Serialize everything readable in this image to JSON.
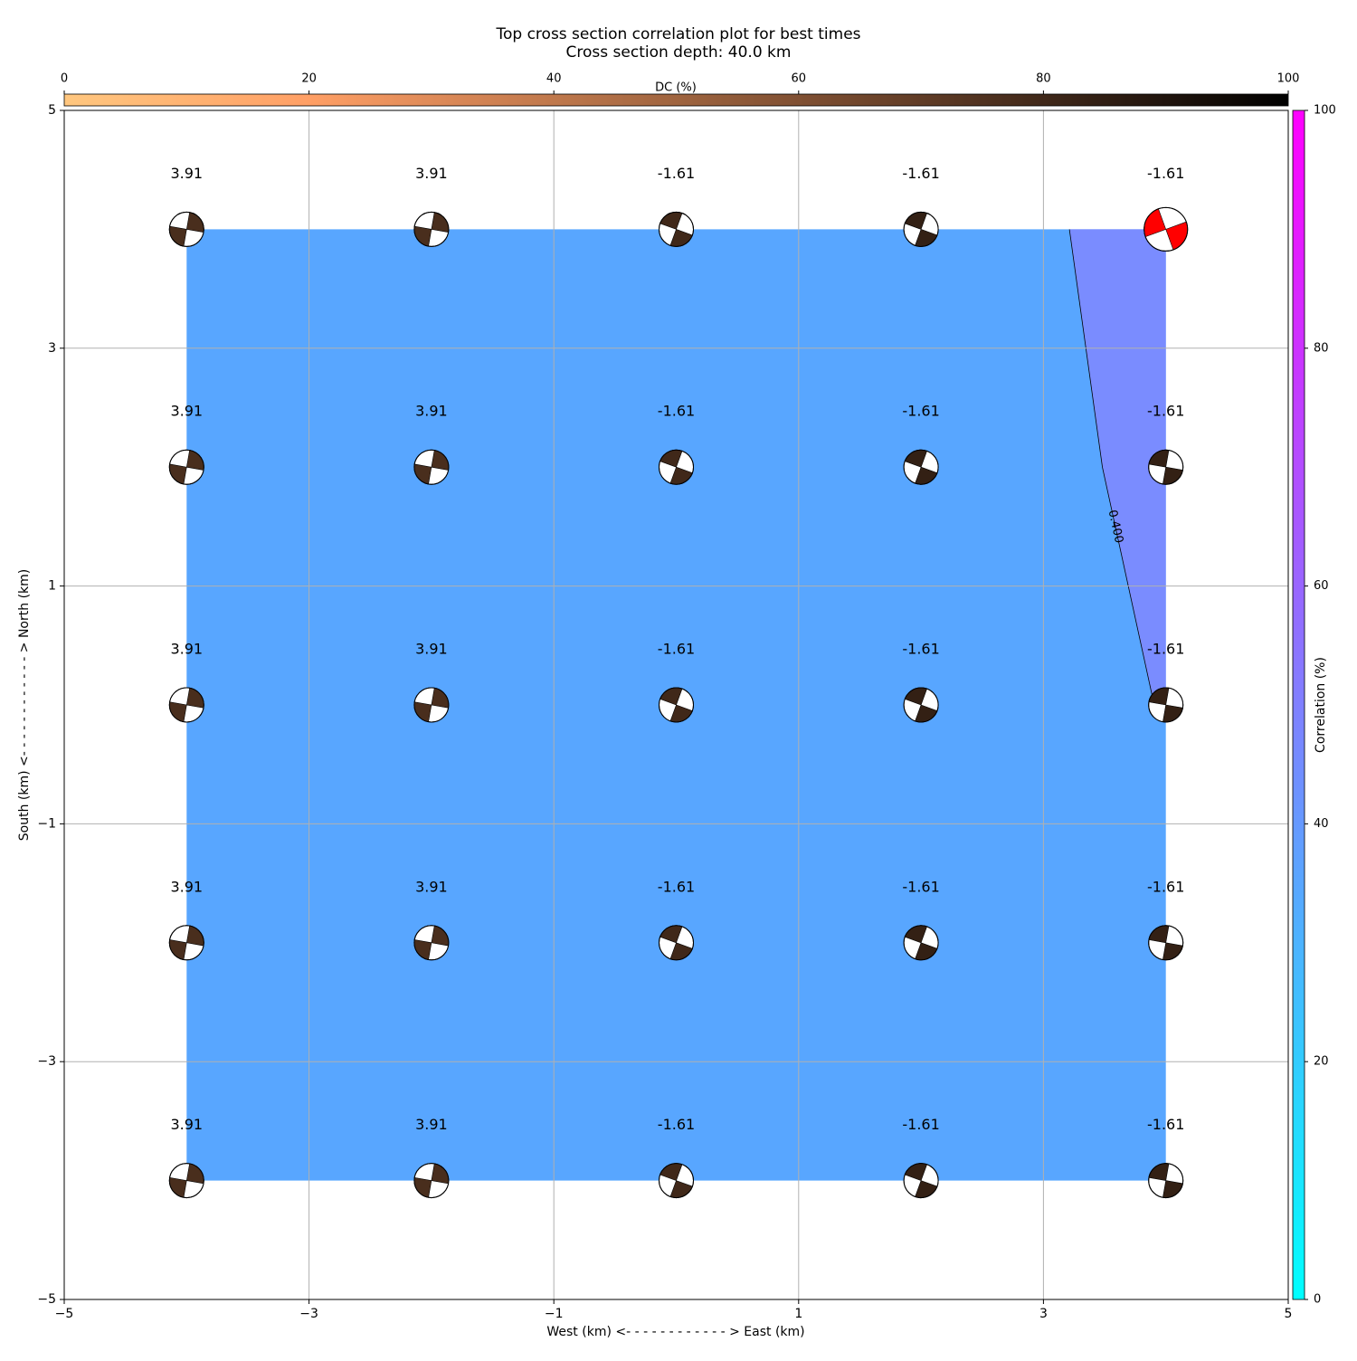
{
  "chart_data": {
    "type": "contour",
    "title": "Top cross section correlation plot for best times",
    "subtitle": "Cross section depth: 40.0 km",
    "x_label": "West (km) <- - - - - - - - - - - - > East (km)",
    "y_label": "South (km) <- - - - - - - - - - - - > North (km)",
    "xlim": [
      -5,
      5
    ],
    "ylim": [
      -5,
      5
    ],
    "xticks": [
      {
        "value": -5,
        "label": "−5"
      },
      {
        "value": -3,
        "label": "−3"
      },
      {
        "value": -1,
        "label": "−1"
      },
      1,
      3,
      5
    ],
    "yticks": [
      {
        "value": -5,
        "label": "−5"
      },
      {
        "value": -3,
        "label": "−3"
      },
      {
        "value": -1,
        "label": "−1"
      },
      1,
      3,
      5
    ],
    "grid": true,
    "x": [
      -4,
      -2,
      0,
      2,
      4
    ],
    "y": [
      4,
      2,
      0,
      -2,
      -4
    ],
    "time_shift": [
      [
        3.91,
        3.91,
        -1.61,
        -1.61,
        -1.61
      ],
      [
        3.91,
        3.91,
        -1.61,
        -1.61,
        -1.61
      ],
      [
        3.91,
        3.91,
        -1.61,
        -1.61,
        -1.61
      ],
      [
        3.91,
        3.91,
        -1.61,
        -1.61,
        -1.61
      ],
      [
        3.91,
        3.91,
        -1.61,
        -1.61,
        -1.61
      ]
    ],
    "correlation": [
      [
        0.38,
        0.38,
        0.38,
        0.38,
        0.413
      ],
      [
        0.38,
        0.38,
        0.38,
        0.38,
        0.407
      ],
      [
        0.38,
        0.38,
        0.38,
        0.38,
        0.401
      ],
      [
        0.38,
        0.38,
        0.38,
        0.38,
        0.385
      ],
      [
        0.38,
        0.38,
        0.38,
        0.38,
        0.38
      ]
    ],
    "dc": [
      [
        77,
        77,
        80,
        84,
        84
      ],
      [
        77,
        77,
        80,
        84,
        84
      ],
      [
        77,
        77,
        80,
        84,
        84
      ],
      [
        77,
        77,
        80,
        84,
        84
      ],
      [
        77,
        77,
        80,
        84,
        84
      ]
    ],
    "strike": [
      [
        10,
        10,
        110,
        110,
        70
      ],
      [
        10,
        10,
        110,
        110,
        100
      ],
      [
        10,
        10,
        110,
        110,
        100
      ],
      [
        10,
        10,
        110,
        110,
        100
      ],
      [
        10,
        10,
        110,
        110,
        100
      ]
    ],
    "best_color": "#ff0000",
    "contour_levels": [
      {
        "value": 0.4,
        "label": "0.400"
      }
    ],
    "fill_colors": [
      "#58a6ff",
      "#7a8cff"
    ],
    "dc_colorbar": {
      "label": "DC (%)",
      "lim": [
        0,
        100
      ],
      "ticks": [
        0,
        20,
        40,
        60,
        80,
        100
      ]
    },
    "corr_colorbar": {
      "label": "Correlation (%)",
      "lim": [
        0,
        100
      ],
      "ticks": [
        0,
        20,
        40,
        60,
        80,
        100
      ]
    }
  }
}
